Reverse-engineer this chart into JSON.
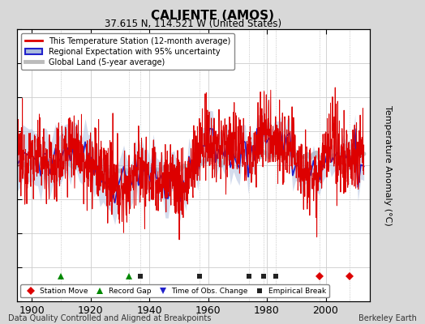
{
  "title": "CALIENTE (AMOS)",
  "subtitle": "37.615 N, 114.521 W (United States)",
  "ylabel": "Temperature Anomaly (°C)",
  "xlabel_note": "Data Quality Controlled and Aligned at Breakpoints",
  "credit": "Berkeley Earth",
  "ylim": [
    -4,
    4
  ],
  "xlim": [
    1895,
    2015
  ],
  "yticks": [
    -4,
    -3,
    -2,
    -1,
    0,
    1,
    2,
    3,
    4
  ],
  "xticks": [
    1900,
    1920,
    1940,
    1960,
    1980,
    2000
  ],
  "fig_bg_color": "#d8d8d8",
  "plot_bg_color": "#ffffff",
  "legend_labels": [
    "This Temperature Station (12-month average)",
    "Regional Expectation with 95% uncertainty",
    "Global Land (5-year average)"
  ],
  "station_moves": [
    1998,
    2008
  ],
  "record_gaps": [
    1910,
    1933
  ],
  "obs_changes": [],
  "empirical_breaks": [
    1937,
    1957,
    1974,
    1979,
    1983
  ],
  "marker_y": -3.25,
  "red_line_color": "#dd0000",
  "blue_line_color": "#2222cc",
  "blue_fill_color": "#aabbdd",
  "gray_line_color": "#bbbbbb"
}
